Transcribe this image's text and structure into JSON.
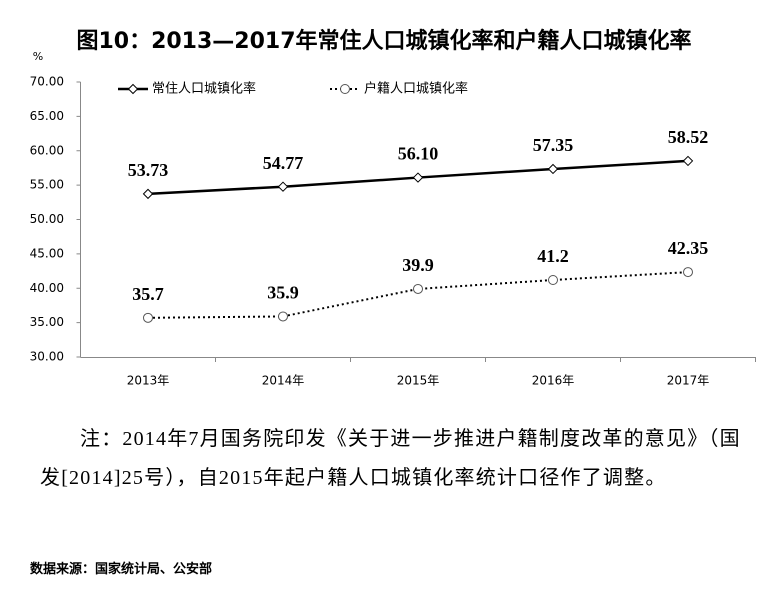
{
  "chart_data": {
    "type": "line",
    "title": "图10：2013—2017年常住人口城镇化率和户籍人口城镇化率",
    "y_label": "%",
    "categories": [
      "2013年",
      "2014年",
      "2015年",
      "2016年",
      "2017年"
    ],
    "series": [
      {
        "name": "常住人口城镇化率",
        "color": "#000000",
        "marker": "diamond",
        "dash": "solid",
        "values": [
          53.73,
          54.77,
          56.1,
          57.35,
          58.52
        ],
        "value_labels": [
          "53.73",
          "54.77",
          "56.10",
          "57.35",
          "58.52"
        ]
      },
      {
        "name": "户籍人口城镇化率",
        "color": "#000000",
        "marker": "circle",
        "dash": "dotted",
        "values": [
          35.7,
          35.9,
          39.9,
          41.2,
          42.35
        ]
      }
    ],
    "ylim": [
      30,
      70
    ],
    "yticks": [
      {
        "value": 30,
        "label": "30.00"
      },
      {
        "value": 35,
        "label": "35.00"
      },
      {
        "value": 40,
        "label": "40.00"
      },
      {
        "value": 45,
        "label": "45.00"
      },
      {
        "value": 50,
        "label": "50.00"
      },
      {
        "value": 55,
        "label": "55.00"
      },
      {
        "value": 60,
        "label": "60.00"
      },
      {
        "value": 65,
        "label": "65.00"
      },
      {
        "value": 70,
        "label": "70.00"
      }
    ],
    "grid": false,
    "legend": "top-left"
  },
  "note": "注：2014年7月国务院印发《关于进一步推进户籍制度改革的意见》（国发[2014]25号），自2015年起户籍人口城镇化率统计口径作了调整。",
  "source": "数据来源：国家统计局、公安部"
}
